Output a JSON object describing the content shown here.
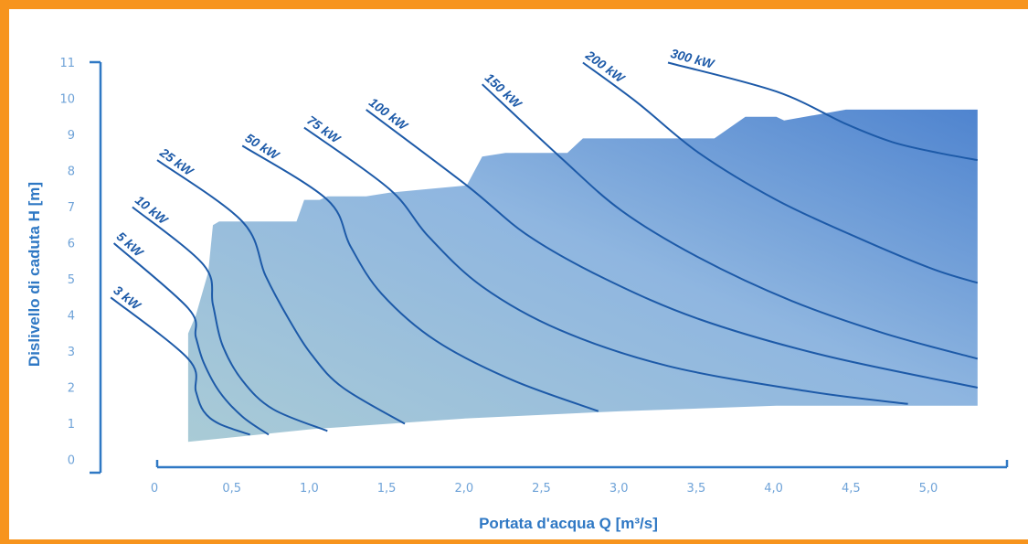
{
  "colors": {
    "frame": "#f7941d",
    "axis": "#2f78c4",
    "curve": "#1d5aa8",
    "area_light": "#a9cbd6",
    "area_dark": "#4f84cf"
  },
  "chart_data": {
    "type": "line",
    "title": "",
    "xlabel": "Portata d'acqua Q [m³/s]",
    "ylabel": "Dislivello di caduta H [m]",
    "xlim": [
      0,
      5.3
    ],
    "ylim": [
      0,
      11
    ],
    "x_ticks": [
      {
        "value": 0,
        "label": "0"
      },
      {
        "value": 0.5,
        "label": "0,5"
      },
      {
        "value": 1.0,
        "label": "1,0"
      },
      {
        "value": 1.5,
        "label": "1,5"
      },
      {
        "value": 2.0,
        "label": "2,0"
      },
      {
        "value": 2.5,
        "label": "2,5"
      },
      {
        "value": 3.0,
        "label": "3,0"
      },
      {
        "value": 3.5,
        "label": "3,5"
      },
      {
        "value": 4.0,
        "label": "4,0"
      },
      {
        "value": 4.5,
        "label": "4,5"
      },
      {
        "value": 5.0,
        "label": "5,0"
      }
    ],
    "y_ticks": [
      {
        "value": 0,
        "label": "0"
      },
      {
        "value": 1,
        "label": "1"
      },
      {
        "value": 2,
        "label": "2"
      },
      {
        "value": 3,
        "label": "3"
      },
      {
        "value": 4,
        "label": "4"
      },
      {
        "value": 5,
        "label": "5"
      },
      {
        "value": 6,
        "label": "6"
      },
      {
        "value": 7,
        "label": "7"
      },
      {
        "value": 8,
        "label": "8"
      },
      {
        "value": 9,
        "label": "9"
      },
      {
        "value": 10,
        "label": "10"
      },
      {
        "value": 11,
        "label": "11"
      }
    ],
    "grid": false,
    "legend": "none",
    "application_area": {
      "x": [
        0.2,
        0.2,
        0.25,
        0.33,
        0.36,
        0.4,
        0.9,
        0.95,
        1.05,
        1.1,
        1.35,
        1.5,
        1.75,
        2.0,
        2.1,
        2.25,
        2.65,
        2.75,
        3.05,
        3.6,
        3.8,
        4.0,
        4.05,
        4.45,
        4.6,
        5.3,
        5.3,
        4.0,
        3.0,
        2.0,
        1.0,
        0.2
      ],
      "y": [
        0.5,
        3.5,
        4.0,
        5.2,
        6.5,
        6.6,
        6.6,
        7.2,
        7.2,
        7.3,
        7.3,
        7.4,
        7.5,
        7.6,
        8.4,
        8.5,
        8.5,
        8.9,
        8.9,
        8.9,
        9.5,
        9.5,
        9.4,
        9.7,
        9.7,
        9.7,
        1.5,
        1.5,
        1.35,
        1.15,
        0.85,
        0.5
      ]
    },
    "series": [
      {
        "name": "3 kW",
        "x": [
          -0.3,
          0.2,
          0.25,
          0.3,
          0.4,
          0.6
        ],
        "y": [
          4.5,
          2.8,
          1.9,
          1.35,
          1.0,
          0.7
        ]
      },
      {
        "name": "5 kW",
        "x": [
          -0.28,
          0.2,
          0.25,
          0.3,
          0.4,
          0.55,
          0.72
        ],
        "y": [
          6.0,
          4.2,
          3.4,
          2.7,
          1.9,
          1.2,
          0.7
        ]
      },
      {
        "name": "10 kW",
        "x": [
          -0.16,
          0.3,
          0.36,
          0.42,
          0.55,
          0.75,
          1.1
        ],
        "y": [
          7.0,
          5.4,
          4.3,
          3.2,
          2.2,
          1.4,
          0.8
        ]
      },
      {
        "name": "25 kW",
        "x": [
          0.0,
          0.55,
          0.7,
          0.85,
          1.0,
          1.2,
          1.6
        ],
        "y": [
          8.3,
          6.6,
          5.1,
          3.9,
          2.9,
          2.0,
          1.0
        ]
      },
      {
        "name": "50 kW",
        "x": [
          0.55,
          1.1,
          1.25,
          1.45,
          1.8,
          2.3,
          2.85
        ],
        "y": [
          8.7,
          7.2,
          5.9,
          4.6,
          3.3,
          2.2,
          1.35
        ]
      },
      {
        "name": "75 kW",
        "x": [
          0.95,
          1.5,
          1.75,
          2.1,
          2.6,
          3.3,
          4.2,
          4.85
        ],
        "y": [
          9.2,
          7.5,
          6.2,
          4.8,
          3.6,
          2.6,
          1.9,
          1.55
        ]
      },
      {
        "name": "100 kW",
        "x": [
          1.35,
          2.0,
          2.4,
          2.9,
          3.5,
          4.3,
          5.3
        ],
        "y": [
          9.7,
          7.6,
          6.2,
          5.0,
          3.9,
          2.9,
          2.0
        ]
      },
      {
        "name": "150 kW",
        "x": [
          2.1,
          2.6,
          3.0,
          3.5,
          4.1,
          4.7,
          5.3
        ],
        "y": [
          10.4,
          8.4,
          6.9,
          5.6,
          4.4,
          3.5,
          2.8
        ]
      },
      {
        "name": "200 kW",
        "x": [
          2.75,
          3.1,
          3.5,
          4.0,
          4.5,
          5.0,
          5.3
        ],
        "y": [
          11.0,
          9.9,
          8.5,
          7.2,
          6.2,
          5.3,
          4.9
        ]
      },
      {
        "name": "300 kW",
        "x": [
          3.3,
          4.0,
          4.45,
          4.75,
          5.05,
          5.3
        ],
        "y": [
          11.0,
          10.2,
          9.3,
          8.8,
          8.5,
          8.3
        ]
      }
    ]
  }
}
